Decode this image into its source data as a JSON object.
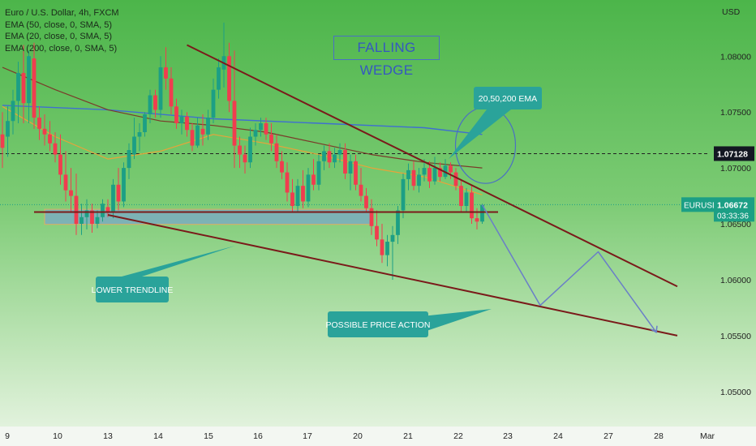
{
  "legend": {
    "symbol": "Euro / U.S. Dollar, 4h, FXCM",
    "indicators": [
      "EMA (50, close, 0, SMA, 5)",
      "EMA (20, close, 0, SMA, 5)",
      "EMA (200, close, 0, SMA, 5)"
    ]
  },
  "annotations": {
    "pattern_title": "FALLING WEDGE",
    "ema_callout": "20,50,200 EMA",
    "lower_trendline_callout": "LOWER TRENDLINE",
    "price_action_callout": "POSSIBLE PRICE ACTION"
  },
  "price_axis": {
    "currency": "USD",
    "ticks": [
      "1.08000",
      "1.07500",
      "1.07000",
      "1.06500",
      "1.06000",
      "1.05500",
      "1.05000"
    ],
    "tick_values": [
      1.08,
      1.075,
      1.07,
      1.065,
      1.06,
      1.055,
      1.05
    ],
    "crosshair_price": "1.07128",
    "symbol_tag": "EURUSD",
    "last_price": "1.06672",
    "countdown": "03:33:36"
  },
  "time_axis": {
    "labels": [
      "9",
      "10",
      "13",
      "14",
      "15",
      "16",
      "17",
      "20",
      "21",
      "22",
      "23",
      "24",
      "27",
      "28",
      "Mar"
    ]
  },
  "colors": {
    "bull": "#1c9f85",
    "bear": "#f03d4f",
    "trendline": "#7a1a1a",
    "ema20": "#e8a33a",
    "ema50": "#7a3b2a",
    "ema200": "#3f6fd0",
    "callout": "#2aa39a",
    "projection": "#6a7ec8",
    "zone": "#7aa8c8"
  },
  "chart_data": {
    "type": "candlestick",
    "title": "Euro / U.S. Dollar, 4h, FXCM",
    "ylabel": "USD",
    "ylim": [
      1.0473,
      1.0843
    ],
    "x_index_range": [
      0,
      142
    ],
    "candles": [
      {
        "i": 0,
        "o": 1.073,
        "h": 1.075,
        "l": 1.07,
        "c": 1.0718
      },
      {
        "i": 1,
        "o": 1.0728,
        "h": 1.0755,
        "l": 1.071,
        "c": 1.0742
      },
      {
        "i": 2,
        "o": 1.0742,
        "h": 1.077,
        "l": 1.073,
        "c": 1.076
      },
      {
        "i": 3,
        "o": 1.076,
        "h": 1.0795,
        "l": 1.074,
        "c": 1.0785
      },
      {
        "i": 4,
        "o": 1.0785,
        "h": 1.081,
        "l": 1.074,
        "c": 1.0758
      },
      {
        "i": 5,
        "o": 1.0758,
        "h": 1.0805,
        "l": 1.074,
        "c": 1.08
      },
      {
        "i": 6,
        "o": 1.0798,
        "h": 1.0812,
        "l": 1.0735,
        "c": 1.0745
      },
      {
        "i": 7,
        "o": 1.0745,
        "h": 1.0755,
        "l": 1.0725,
        "c": 1.0735
      },
      {
        "i": 8,
        "o": 1.0735,
        "h": 1.0748,
        "l": 1.072,
        "c": 1.073
      },
      {
        "i": 9,
        "o": 1.073,
        "h": 1.0742,
        "l": 1.0715,
        "c": 1.0722
      },
      {
        "i": 10,
        "o": 1.0722,
        "h": 1.0732,
        "l": 1.0705,
        "c": 1.0712
      },
      {
        "i": 11,
        "o": 1.0712,
        "h": 1.073,
        "l": 1.0685,
        "c": 1.0694
      },
      {
        "i": 12,
        "o": 1.0694,
        "h": 1.0715,
        "l": 1.067,
        "c": 1.068
      },
      {
        "i": 13,
        "o": 1.068,
        "h": 1.07,
        "l": 1.066,
        "c": 1.0675
      },
      {
        "i": 14,
        "o": 1.0675,
        "h": 1.0695,
        "l": 1.064,
        "c": 1.065
      },
      {
        "i": 15,
        "o": 1.065,
        "h": 1.0668,
        "l": 1.064,
        "c": 1.0656
      },
      {
        "i": 16,
        "o": 1.0656,
        "h": 1.0672,
        "l": 1.0645,
        "c": 1.0662
      },
      {
        "i": 17,
        "o": 1.0662,
        "h": 1.0668,
        "l": 1.0642,
        "c": 1.065
      },
      {
        "i": 18,
        "o": 1.065,
        "h": 1.0662,
        "l": 1.0646,
        "c": 1.0656
      },
      {
        "i": 19,
        "o": 1.0656,
        "h": 1.0672,
        "l": 1.0652,
        "c": 1.0668
      },
      {
        "i": 20,
        "o": 1.0665,
        "h": 1.0672,
        "l": 1.0656,
        "c": 1.066
      },
      {
        "i": 21,
        "o": 1.066,
        "h": 1.069,
        "l": 1.0655,
        "c": 1.0685
      },
      {
        "i": 22,
        "o": 1.0685,
        "h": 1.07,
        "l": 1.0662,
        "c": 1.067
      },
      {
        "i": 23,
        "o": 1.067,
        "h": 1.0705,
        "l": 1.0665,
        "c": 1.07
      },
      {
        "i": 24,
        "o": 1.07,
        "h": 1.0722,
        "l": 1.069,
        "c": 1.0716
      },
      {
        "i": 25,
        "o": 1.0712,
        "h": 1.0745,
        "l": 1.0708,
        "c": 1.0728
      },
      {
        "i": 26,
        "o": 1.0728,
        "h": 1.074,
        "l": 1.0715,
        "c": 1.0732
      },
      {
        "i": 27,
        "o": 1.0732,
        "h": 1.075,
        "l": 1.0728,
        "c": 1.0748
      },
      {
        "i": 28,
        "o": 1.0748,
        "h": 1.077,
        "l": 1.074,
        "c": 1.0765
      },
      {
        "i": 29,
        "o": 1.0765,
        "h": 1.077,
        "l": 1.0745,
        "c": 1.0752
      },
      {
        "i": 30,
        "o": 1.0752,
        "h": 1.08,
        "l": 1.0745,
        "c": 1.079
      },
      {
        "i": 31,
        "o": 1.079,
        "h": 1.0808,
        "l": 1.077,
        "c": 1.078
      },
      {
        "i": 32,
        "o": 1.078,
        "h": 1.079,
        "l": 1.0748,
        "c": 1.0755
      },
      {
        "i": 33,
        "o": 1.0755,
        "h": 1.0762,
        "l": 1.0735,
        "c": 1.074
      },
      {
        "i": 34,
        "o": 1.074,
        "h": 1.0752,
        "l": 1.073,
        "c": 1.0746
      },
      {
        "i": 35,
        "o": 1.0746,
        "h": 1.075,
        "l": 1.0728,
        "c": 1.0734
      },
      {
        "i": 36,
        "o": 1.0734,
        "h": 1.074,
        "l": 1.0715,
        "c": 1.072
      },
      {
        "i": 37,
        "o": 1.072,
        "h": 1.0745,
        "l": 1.0718,
        "c": 1.0738
      },
      {
        "i": 38,
        "o": 1.0735,
        "h": 1.0748,
        "l": 1.072,
        "c": 1.073
      },
      {
        "i": 39,
        "o": 1.073,
        "h": 1.0752,
        "l": 1.0725,
        "c": 1.0745
      },
      {
        "i": 40,
        "o": 1.0745,
        "h": 1.078,
        "l": 1.074,
        "c": 1.077
      },
      {
        "i": 41,
        "o": 1.077,
        "h": 1.0798,
        "l": 1.0762,
        "c": 1.079
      },
      {
        "i": 42,
        "o": 1.0788,
        "h": 1.083,
        "l": 1.0772,
        "c": 1.08
      },
      {
        "i": 43,
        "o": 1.08,
        "h": 1.0812,
        "l": 1.075,
        "c": 1.076
      },
      {
        "i": 44,
        "o": 1.076,
        "h": 1.0805,
        "l": 1.07,
        "c": 1.072
      },
      {
        "i": 45,
        "o": 1.072,
        "h": 1.0728,
        "l": 1.07,
        "c": 1.0712
      },
      {
        "i": 46,
        "o": 1.0712,
        "h": 1.072,
        "l": 1.0695,
        "c": 1.0705
      },
      {
        "i": 47,
        "o": 1.0705,
        "h": 1.0736,
        "l": 1.07,
        "c": 1.0728
      },
      {
        "i": 48,
        "o": 1.0728,
        "h": 1.074,
        "l": 1.072,
        "c": 1.0734
      },
      {
        "i": 49,
        "o": 1.0734,
        "h": 1.0745,
        "l": 1.0728,
        "c": 1.074
      },
      {
        "i": 50,
        "o": 1.074,
        "h": 1.0745,
        "l": 1.0725,
        "c": 1.073
      },
      {
        "i": 51,
        "o": 1.073,
        "h": 1.074,
        "l": 1.0715,
        "c": 1.0722
      },
      {
        "i": 52,
        "o": 1.0722,
        "h": 1.073,
        "l": 1.07,
        "c": 1.0706
      },
      {
        "i": 53,
        "o": 1.0706,
        "h": 1.0715,
        "l": 1.069,
        "c": 1.0696
      },
      {
        "i": 54,
        "o": 1.0696,
        "h": 1.0705,
        "l": 1.067,
        "c": 1.0678
      },
      {
        "i": 55,
        "o": 1.0678,
        "h": 1.069,
        "l": 1.066,
        "c": 1.0666
      },
      {
        "i": 56,
        "o": 1.0666,
        "h": 1.069,
        "l": 1.066,
        "c": 1.0684
      },
      {
        "i": 57,
        "o": 1.0684,
        "h": 1.0698,
        "l": 1.0664,
        "c": 1.067
      },
      {
        "i": 58,
        "o": 1.067,
        "h": 1.07,
        "l": 1.0665,
        "c": 1.0694
      },
      {
        "i": 59,
        "o": 1.0694,
        "h": 1.0708,
        "l": 1.068,
        "c": 1.0685
      },
      {
        "i": 60,
        "o": 1.0685,
        "h": 1.0712,
        "l": 1.068,
        "c": 1.0706
      },
      {
        "i": 61,
        "o": 1.0706,
        "h": 1.072,
        "l": 1.0698,
        "c": 1.0715
      },
      {
        "i": 62,
        "o": 1.0715,
        "h": 1.0722,
        "l": 1.07,
        "c": 1.0705
      },
      {
        "i": 63,
        "o": 1.0705,
        "h": 1.0718,
        "l": 1.07,
        "c": 1.0712
      },
      {
        "i": 64,
        "o": 1.0712,
        "h": 1.0722,
        "l": 1.0705,
        "c": 1.0716
      },
      {
        "i": 65,
        "o": 1.0716,
        "h": 1.0722,
        "l": 1.069,
        "c": 1.0695
      },
      {
        "i": 66,
        "o": 1.0695,
        "h": 1.0712,
        "l": 1.068,
        "c": 1.0706
      },
      {
        "i": 67,
        "o": 1.0706,
        "h": 1.0712,
        "l": 1.068,
        "c": 1.0685
      },
      {
        "i": 68,
        "o": 1.0685,
        "h": 1.07,
        "l": 1.067,
        "c": 1.0675
      },
      {
        "i": 69,
        "o": 1.0675,
        "h": 1.0682,
        "l": 1.066,
        "c": 1.0664
      },
      {
        "i": 70,
        "o": 1.0664,
        "h": 1.0672,
        "l": 1.064,
        "c": 1.0648
      },
      {
        "i": 71,
        "o": 1.0648,
        "h": 1.0662,
        "l": 1.063,
        "c": 1.0636
      },
      {
        "i": 72,
        "o": 1.0636,
        "h": 1.065,
        "l": 1.0615,
        "c": 1.0622
      },
      {
        "i": 73,
        "o": 1.0622,
        "h": 1.064,
        "l": 1.0612,
        "c": 1.0634
      },
      {
        "i": 74,
        "o": 1.0634,
        "h": 1.0648,
        "l": 1.06,
        "c": 1.064
      },
      {
        "i": 75,
        "o": 1.064,
        "h": 1.0666,
        "l": 1.0632,
        "c": 1.0662
      },
      {
        "i": 76,
        "o": 1.0662,
        "h": 1.0695,
        "l": 1.0655,
        "c": 1.069
      },
      {
        "i": 77,
        "o": 1.069,
        "h": 1.0704,
        "l": 1.068,
        "c": 1.0698
      },
      {
        "i": 78,
        "o": 1.0698,
        "h": 1.0706,
        "l": 1.068,
        "c": 1.0684
      },
      {
        "i": 79,
        "o": 1.0684,
        "h": 1.07,
        "l": 1.0678,
        "c": 1.0694
      },
      {
        "i": 80,
        "o": 1.0694,
        "h": 1.0708,
        "l": 1.0688,
        "c": 1.07
      },
      {
        "i": 81,
        "o": 1.07,
        "h": 1.0706,
        "l": 1.0682,
        "c": 1.0688
      },
      {
        "i": 82,
        "o": 1.0688,
        "h": 1.071,
        "l": 1.0685,
        "c": 1.07
      },
      {
        "i": 83,
        "o": 1.07,
        "h": 1.0705,
        "l": 1.0688,
        "c": 1.0692
      },
      {
        "i": 84,
        "o": 1.0692,
        "h": 1.0708,
        "l": 1.069,
        "c": 1.0702
      },
      {
        "i": 85,
        "o": 1.0702,
        "h": 1.0705,
        "l": 1.069,
        "c": 1.0696
      },
      {
        "i": 86,
        "o": 1.0696,
        "h": 1.07,
        "l": 1.068,
        "c": 1.0684
      },
      {
        "i": 87,
        "o": 1.0684,
        "h": 1.069,
        "l": 1.066,
        "c": 1.0666
      },
      {
        "i": 88,
        "o": 1.0666,
        "h": 1.0682,
        "l": 1.066,
        "c": 1.0678
      },
      {
        "i": 89,
        "o": 1.0678,
        "h": 1.0684,
        "l": 1.065,
        "c": 1.0655
      },
      {
        "i": 90,
        "o": 1.0655,
        "h": 1.0664,
        "l": 1.0645,
        "c": 1.0652
      },
      {
        "i": 91,
        "o": 1.0652,
        "h": 1.0668,
        "l": 1.065,
        "c": 1.0667
      }
    ],
    "ema20": {
      "x": [
        0,
        10,
        20,
        30,
        40,
        50,
        60,
        70,
        80,
        91
      ],
      "y": [
        1.0755,
        1.0728,
        1.0708,
        1.0715,
        1.073,
        1.0722,
        1.0712,
        1.07,
        1.0692,
        1.0676
      ]
    },
    "ema50": {
      "x": [
        0,
        10,
        20,
        30,
        40,
        50,
        60,
        70,
        80,
        91
      ],
      "y": [
        1.079,
        1.077,
        1.0752,
        1.0742,
        1.0738,
        1.0732,
        1.0722,
        1.0712,
        1.0705,
        1.07
      ]
    },
    "ema200": {
      "x": [
        0,
        20,
        40,
        60,
        80,
        91
      ],
      "y": [
        1.0756,
        1.0752,
        1.0744,
        1.074,
        1.0736,
        1.073
      ]
    },
    "support_zone": {
      "x": [
        8,
        70
      ],
      "y": [
        1.06495,
        1.0663
      ]
    },
    "horizontal_line": {
      "x": [
        6,
        94
      ],
      "y": 1.06605
    },
    "crosshair_price": 1.07128,
    "last_price": 1.06672,
    "upper_trendline": {
      "x": [
        35,
        128
      ],
      "y": [
        1.081,
        1.0594
      ]
    },
    "lower_trendline": {
      "x": [
        20,
        128
      ],
      "y": [
        1.0658,
        1.055
      ]
    },
    "projection_path": {
      "x": [
        91,
        102,
        113,
        124
      ],
      "y": [
        1.0667,
        1.0577,
        1.0625,
        1.0553
      ]
    },
    "ema_circle": {
      "cx": 91,
      "cy": 1.0713,
      "note": "highlights converging EMAs"
    }
  }
}
